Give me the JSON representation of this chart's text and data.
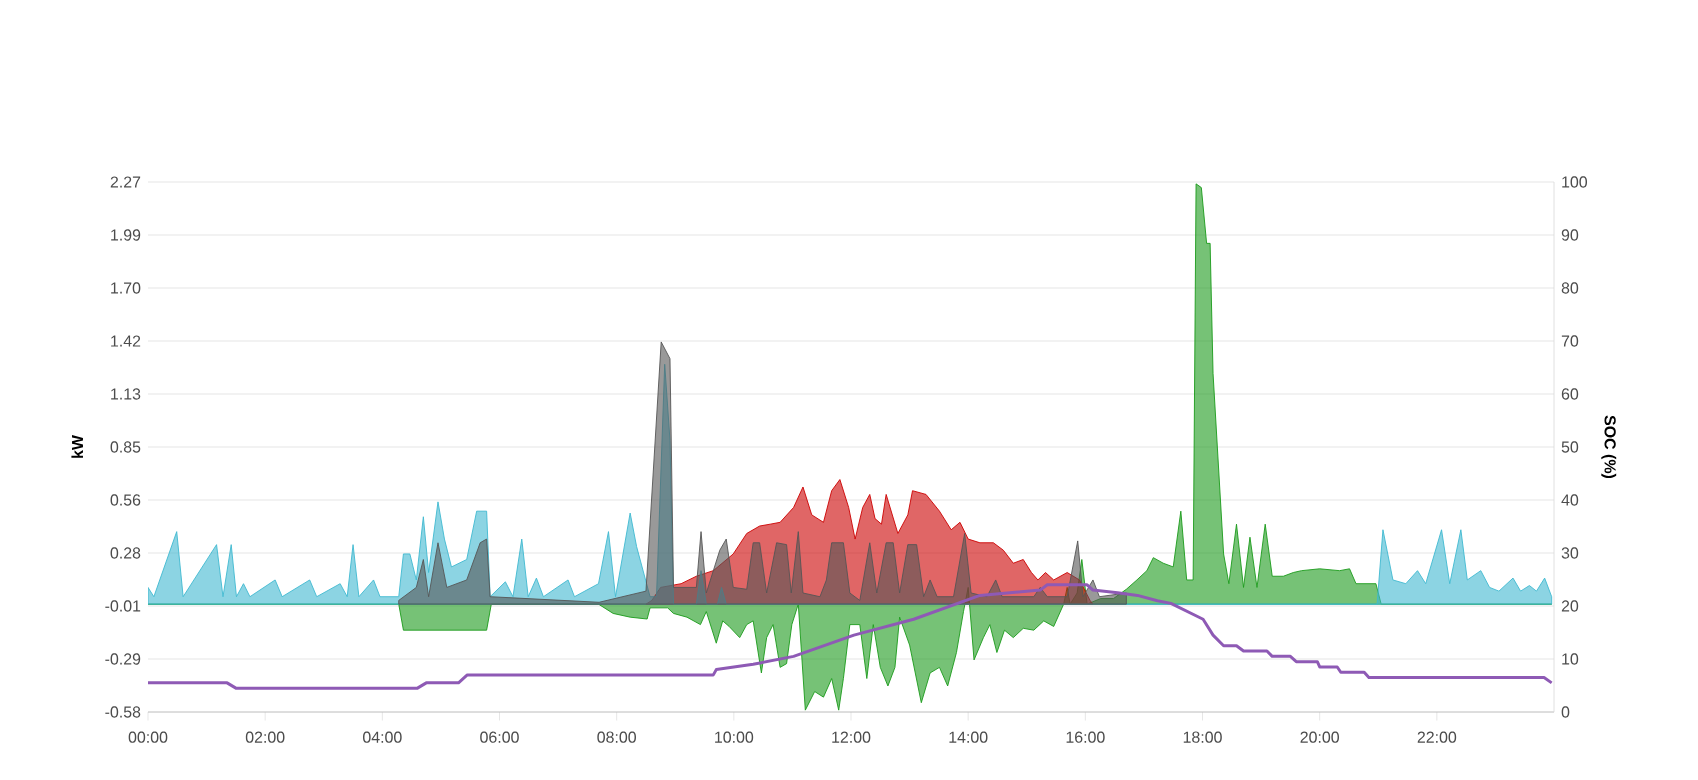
{
  "chart_data": {
    "type": "area",
    "ylabel": "kW",
    "y2label": "SOC (%)",
    "grid": "y",
    "xlim": [
      0,
      24
    ],
    "xticks": [
      {
        "value": 0,
        "label": "00:00"
      },
      {
        "value": 2,
        "label": "02:00"
      },
      {
        "value": 4,
        "label": "04:00"
      },
      {
        "value": 6,
        "label": "06:00"
      },
      {
        "value": 8,
        "label": "08:00"
      },
      {
        "value": 10,
        "label": "10:00"
      },
      {
        "value": 12,
        "label": "12:00"
      },
      {
        "value": 14,
        "label": "14:00"
      },
      {
        "value": 16,
        "label": "16:00"
      },
      {
        "value": 18,
        "label": "18:00"
      },
      {
        "value": 20,
        "label": "20:00"
      },
      {
        "value": 22,
        "label": "22:00"
      }
    ],
    "ylim": [
      -0.58,
      2.27
    ],
    "yticks": [
      {
        "value": -0.58,
        "label": "-0.58"
      },
      {
        "value": -0.295,
        "label": "-0.29"
      },
      {
        "value": -0.01,
        "label": "-0.01"
      },
      {
        "value": 0.275,
        "label": "0.28"
      },
      {
        "value": 0.56,
        "label": "0.56"
      },
      {
        "value": 0.845,
        "label": "0.85"
      },
      {
        "value": 1.13,
        "label": "1.13"
      },
      {
        "value": 1.415,
        "label": "1.42"
      },
      {
        "value": 1.7,
        "label": "1.70"
      },
      {
        "value": 1.985,
        "label": "1.99"
      },
      {
        "value": 2.27,
        "label": "2.27"
      }
    ],
    "y2lim": [
      0,
      100
    ],
    "y2ticks": [
      0,
      10,
      20,
      30,
      40,
      50,
      60,
      70,
      80,
      90,
      100
    ],
    "series": [
      {
        "color": "#1a9a1a",
        "x": [
          0,
          4.28,
          4.36,
          5.78,
          5.86,
          7.69,
          7.94,
          8.23,
          8.52,
          8.57,
          8.87,
          8.97,
          9.2,
          9.43,
          9.53,
          9.7,
          9.81,
          9.92,
          10.1,
          10.22,
          10.33,
          10.47,
          10.56,
          10.67,
          10.79,
          10.9,
          10.99,
          11.1,
          11.22,
          11.38,
          11.53,
          11.67,
          11.79,
          11.87,
          11.98,
          12.15,
          12.27,
          12.38,
          12.5,
          12.63,
          12.75,
          12.83,
          13.0,
          13.2,
          13.35,
          13.51,
          13.65,
          13.8,
          13.92,
          14.0,
          14.1,
          14.26,
          14.37,
          14.49,
          14.62,
          14.77,
          14.94,
          15.12,
          15.29,
          15.46,
          15.63,
          15.69,
          15.74,
          15.86,
          15.94,
          16.03,
          16.26,
          16.48,
          16.7,
          16.88,
          17.05,
          17.16,
          17.33,
          17.5,
          17.63,
          17.73,
          17.84,
          17.89,
          17.98,
          18.07,
          18.13,
          18.18,
          18.36,
          18.45,
          18.58,
          18.7,
          18.81,
          18.93,
          19.07,
          19.19,
          19.38,
          19.55,
          19.69,
          20.0,
          20.34,
          20.51,
          20.62,
          20.96,
          21.05,
          23.96
        ],
        "values": [
          0,
          0,
          -0.14,
          -0.14,
          0,
          0,
          -0.05,
          -0.07,
          -0.08,
          -0.02,
          -0.02,
          -0.05,
          -0.07,
          -0.11,
          -0.04,
          -0.21,
          -0.09,
          -0.12,
          -0.18,
          -0.11,
          -0.09,
          -0.37,
          -0.18,
          -0.11,
          -0.34,
          -0.32,
          -0.11,
          0,
          -0.57,
          -0.47,
          -0.5,
          -0.4,
          -0.57,
          -0.4,
          -0.11,
          -0.11,
          -0.4,
          -0.11,
          -0.34,
          -0.44,
          -0.34,
          -0.07,
          -0.22,
          -0.53,
          -0.37,
          -0.34,
          -0.44,
          -0.26,
          -0.04,
          0.09,
          -0.3,
          -0.18,
          -0.11,
          -0.26,
          -0.14,
          -0.18,
          -0.13,
          -0.14,
          -0.09,
          -0.12,
          0,
          0.09,
          0,
          0.06,
          0.24,
          0,
          0.03,
          0.03,
          0.08,
          0.13,
          0.18,
          0.25,
          0.22,
          0.2,
          0.5,
          0.13,
          0.13,
          2.26,
          2.24,
          1.94,
          1.94,
          1.24,
          0.27,
          0.11,
          0.43,
          0.09,
          0.36,
          0.09,
          0.43,
          0.15,
          0.15,
          0.17,
          0.18,
          0.19,
          0.18,
          0.19,
          0.11,
          0.11,
          0,
          0
        ]
      },
      {
        "color": "#cc0000",
        "x": [
          8.5,
          8.6,
          8.75,
          9.1,
          9.36,
          9.65,
          9.99,
          10.22,
          10.44,
          10.62,
          10.79,
          11.02,
          11.18,
          11.33,
          11.53,
          11.67,
          11.81,
          11.96,
          12.07,
          12.2,
          12.32,
          12.41,
          12.52,
          12.6,
          12.8,
          12.97,
          13.05,
          13.28,
          13.51,
          13.71,
          13.86,
          14.0,
          14.2,
          14.43,
          14.6,
          14.77,
          14.94,
          15.08,
          15.19,
          15.32,
          15.46,
          15.69,
          15.9,
          16.08,
          16.13
        ],
        "values": [
          0,
          0.02,
          0.09,
          0.11,
          0.15,
          0.18,
          0.27,
          0.38,
          0.42,
          0.43,
          0.44,
          0.52,
          0.63,
          0.48,
          0.44,
          0.61,
          0.67,
          0.52,
          0.35,
          0.52,
          0.59,
          0.46,
          0.43,
          0.59,
          0.38,
          0.48,
          0.61,
          0.59,
          0.5,
          0.4,
          0.44,
          0.35,
          0.33,
          0.33,
          0.29,
          0.22,
          0.24,
          0.17,
          0.13,
          0.17,
          0.13,
          0.17,
          0.13,
          0.02,
          0
        ]
      },
      {
        "color": "#3fb8d0",
        "x": [
          0,
          0.1,
          0.49,
          0.6,
          1.17,
          1.28,
          1.42,
          1.51,
          1.63,
          1.74,
          2.17,
          2.29,
          2.76,
          2.88,
          3.28,
          3.4,
          3.5,
          3.6,
          3.85,
          3.96,
          4.28,
          4.36,
          4.47,
          4.58,
          4.7,
          4.79,
          4.95,
          5.06,
          5.18,
          5.44,
          5.61,
          5.78,
          5.84,
          6.1,
          6.23,
          6.38,
          6.49,
          6.63,
          6.75,
          7.17,
          7.28,
          7.69,
          7.86,
          7.98,
          8.23,
          8.34,
          8.57,
          8.68,
          8.82,
          8.91,
          8.97,
          9.36,
          9.44,
          9.53,
          9.72,
          9.79,
          9.87,
          20.98,
          21.08,
          21.25,
          21.47,
          21.67,
          21.81,
          22.08,
          22.22,
          22.41,
          22.52,
          22.75,
          22.9,
          23.06,
          23.3,
          23.43,
          23.58,
          23.7,
          23.84,
          23.96
        ],
        "values": [
          0.09,
          0.04,
          0.39,
          0.04,
          0.32,
          0.04,
          0.32,
          0.04,
          0.11,
          0.04,
          0.13,
          0.04,
          0.13,
          0.04,
          0.11,
          0.04,
          0.32,
          0.04,
          0.13,
          0.04,
          0.04,
          0.27,
          0.27,
          0.13,
          0.47,
          0.17,
          0.55,
          0.35,
          0.2,
          0.24,
          0.5,
          0.5,
          0.04,
          0.12,
          0.04,
          0.35,
          0.04,
          0.14,
          0.04,
          0.13,
          0.04,
          0.11,
          0.39,
          0.04,
          0.49,
          0.31,
          0.04,
          0.04,
          1.29,
          0.88,
          0,
          0,
          0.18,
          0,
          0,
          0.09,
          0,
          0,
          0.4,
          0.13,
          0.11,
          0.18,
          0.11,
          0.4,
          0.11,
          0.4,
          0.13,
          0.18,
          0.09,
          0.07,
          0.14,
          0.07,
          0.1,
          0.07,
          0.14,
          0.04
        ]
      },
      {
        "color": "#555555",
        "x": [
          4.28,
          4.58,
          4.7,
          4.79,
          4.95,
          5.1,
          5.44,
          5.67,
          5.78,
          5.84,
          7.7,
          8.5,
          8.76,
          8.91,
          8.97,
          9.36,
          9.44,
          9.53,
          9.76,
          9.87,
          9.99,
          10.22,
          10.33,
          10.44,
          10.56,
          10.73,
          10.9,
          10.98,
          11.1,
          11.18,
          11.47,
          11.58,
          11.67,
          11.87,
          11.98,
          12.15,
          12.32,
          12.44,
          12.6,
          12.72,
          12.83,
          12.97,
          13.12,
          13.24,
          13.35,
          13.47,
          13.75,
          13.94,
          14.05,
          14.32,
          14.47,
          14.58,
          15.12,
          15.23,
          15.35,
          15.69,
          15.87,
          15.96,
          16.13,
          16.24,
          16.7
        ],
        "values": [
          0.02,
          0.09,
          0.24,
          0.04,
          0.33,
          0.09,
          0.13,
          0.33,
          0.35,
          0.04,
          0.01,
          0.07,
          1.41,
          1.32,
          0.09,
          0.09,
          0.39,
          0.06,
          0.29,
          0.35,
          0.09,
          0.08,
          0.33,
          0.33,
          0.06,
          0.33,
          0.32,
          0.06,
          0.39,
          0.06,
          0.04,
          0.13,
          0.33,
          0.33,
          0.06,
          0.02,
          0.33,
          0.06,
          0.33,
          0.33,
          0.06,
          0.32,
          0.32,
          0.04,
          0.13,
          0.04,
          0.04,
          0.38,
          0.06,
          0.04,
          0.13,
          0.04,
          0.04,
          0.09,
          0.04,
          0.04,
          0.34,
          0.04,
          0.13,
          0.04,
          0.06
        ]
      },
      {
        "type": "line",
        "axis": "y2",
        "color": "#8e5ab5",
        "x": [
          0,
          1.35,
          1.5,
          4.6,
          4.75,
          5.3,
          5.45,
          9.65,
          9.7,
          10.33,
          11.02,
          12.05,
          13.07,
          14.2,
          15.23,
          15.35,
          16.03,
          16.13,
          16.55,
          16.89,
          17.23,
          17.46,
          18.01,
          18.18,
          18.36,
          18.58,
          18.7,
          19.1,
          19.19,
          19.5,
          19.6,
          19.96,
          20.0,
          20.3,
          20.36,
          20.76,
          20.84,
          23.83,
          23.96
        ],
        "values": [
          5.5,
          5.5,
          4.5,
          4.5,
          5.5,
          5.5,
          7,
          7,
          8,
          9,
          10.5,
          14.5,
          17.5,
          22,
          23,
          24,
          24,
          23,
          22.5,
          22,
          21,
          20.5,
          17.5,
          14.5,
          12.5,
          12.5,
          11.5,
          11.5,
          10.5,
          10.5,
          9.5,
          9.5,
          8.5,
          8.5,
          7.5,
          7.5,
          6.5,
          6.5,
          5.5
        ]
      }
    ]
  }
}
